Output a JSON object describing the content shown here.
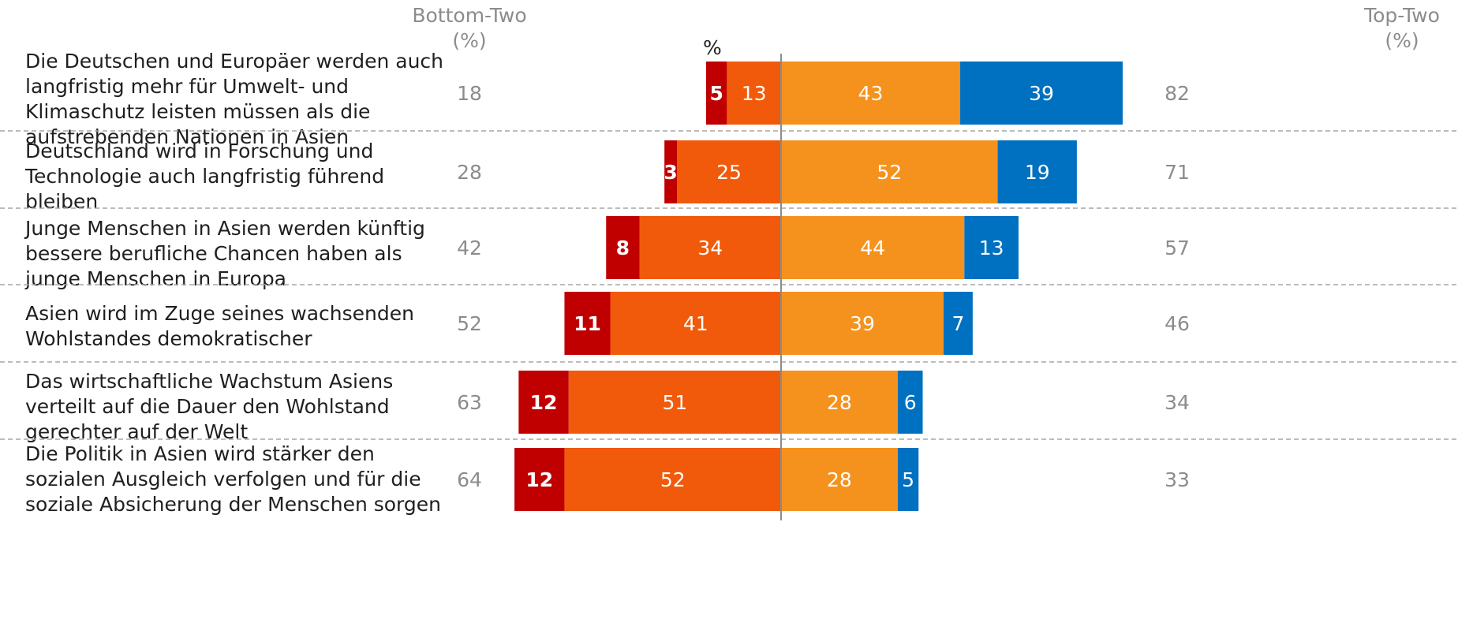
{
  "header": {
    "bottom_two": "Bottom-Two\n(%)",
    "top_two": "Top-Two\n(%)",
    "unit": "%"
  },
  "colors": {
    "dark_red": "#c00000",
    "orange_red": "#f05a0a",
    "orange": "#f5921e",
    "blue": "#0070c0",
    "side_text": "#8c8c8c",
    "divider": "#a6a6a6"
  },
  "chart_data": {
    "type": "bar",
    "orientation": "diverging-stacked-horizontal",
    "unit": "%",
    "categories": [
      "Die Deutschen und Europäer werden auch langfristig mehr für Umwelt- und Klimaschutz leisten müssen als die aufstrebenden Nationen in Asien",
      "Deutschland wird in Forschung und Technologie auch langfristig führend bleiben",
      "Junge Menschen in Asien werden künftig bessere berufliche Chancen haben als junge Menschen in Europa",
      "Asien wird im Zuge seines wachsenden Wohlstandes demokratischer",
      "Das wirtschaftliche Wachstum Asiens verteilt auf die Dauer den Wohlstand gerechter auf der Welt",
      "Die Politik in Asien wird stärker den sozialen Ausgleich verfolgen und für die soziale Absicherung der Menschen sorgen"
    ],
    "series": [
      {
        "side": "negative",
        "color": "#c00000",
        "values": [
          5,
          3,
          8,
          11,
          12,
          12
        ]
      },
      {
        "side": "negative",
        "color": "#f05a0a",
        "values": [
          13,
          25,
          34,
          41,
          51,
          52
        ]
      },
      {
        "side": "positive",
        "color": "#f5921e",
        "values": [
          43,
          52,
          44,
          39,
          28,
          28
        ]
      },
      {
        "side": "positive",
        "color": "#0070c0",
        "values": [
          39,
          19,
          13,
          7,
          6,
          5
        ]
      }
    ],
    "bottom_two": [
      18,
      28,
      42,
      52,
      63,
      64
    ],
    "top_two": [
      82,
      71,
      57,
      46,
      34,
      33
    ]
  }
}
